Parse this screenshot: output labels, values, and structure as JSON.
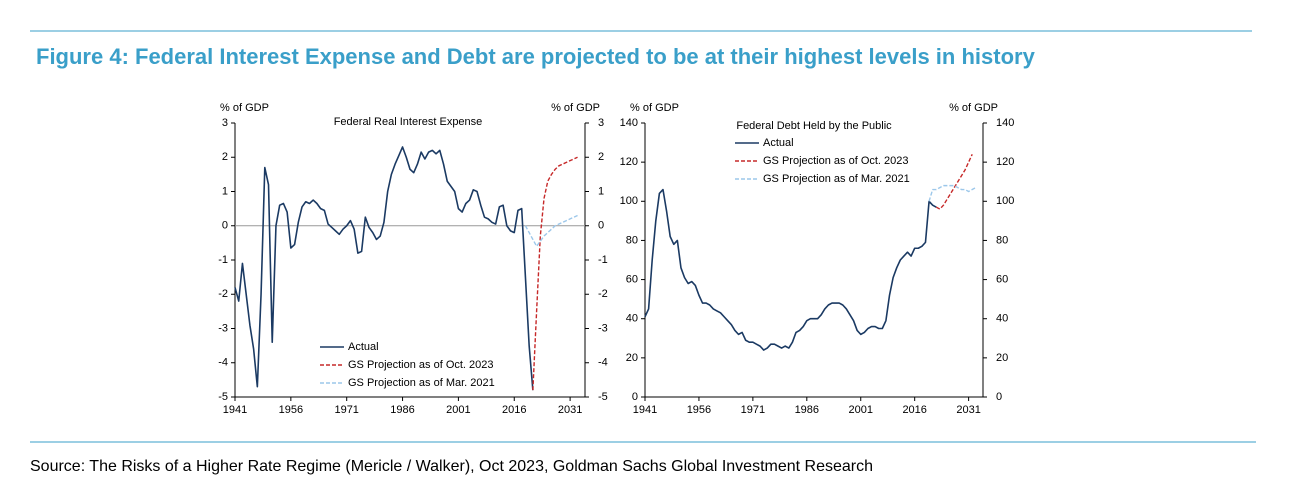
{
  "title": "Figure 4: Federal Interest Expense and Debt are projected to be at their highest levels in history",
  "source": "Source: The Risks of a Higher Rate Regime (Mericle / Walker), Oct 2023, Goldman Sachs Global Investment Research",
  "chart_data": [
    {
      "type": "line",
      "title": "Federal Real Interest Expense",
      "ylabel": "% of GDP",
      "y2label": "% of GDP",
      "xlim": [
        1941,
        2035
      ],
      "xticks": [
        1941,
        1956,
        1971,
        1986,
        2001,
        2016,
        2031
      ],
      "ylim": [
        -5,
        3
      ],
      "yticks": [
        -5,
        -4,
        -3,
        -2,
        -1,
        0,
        1,
        2,
        3
      ],
      "y2lim": [
        -5,
        3
      ],
      "y2ticks": [
        -5,
        -4,
        -3,
        -2,
        -1,
        0,
        1,
        2,
        3
      ],
      "legend": "lower left",
      "series": [
        {
          "name": "Actual",
          "color": "#1b3a63",
          "style": "solid",
          "x": [
            1941,
            1942,
            1943,
            1944,
            1945,
            1946,
            1947,
            1948,
            1949,
            1950,
            1951,
            1952,
            1953,
            1954,
            1955,
            1956,
            1957,
            1958,
            1959,
            1960,
            1961,
            1962,
            1963,
            1964,
            1965,
            1966,
            1967,
            1968,
            1969,
            1970,
            1971,
            1972,
            1973,
            1974,
            1975,
            1976,
            1977,
            1978,
            1979,
            1980,
            1981,
            1982,
            1983,
            1984,
            1985,
            1986,
            1987,
            1988,
            1989,
            1990,
            1991,
            1992,
            1993,
            1994,
            1995,
            1996,
            1997,
            1998,
            1999,
            2000,
            2001,
            2002,
            2003,
            2004,
            2005,
            2006,
            2007,
            2008,
            2009,
            2010,
            2011,
            2012,
            2013,
            2014,
            2015,
            2016,
            2017,
            2018,
            2019,
            2020,
            2021
          ],
          "values": [
            -1.8,
            -2.2,
            -1.1,
            -2.0,
            -2.9,
            -3.6,
            -4.7,
            -2.0,
            1.7,
            1.2,
            -3.4,
            0.0,
            0.6,
            0.65,
            0.4,
            -0.65,
            -0.55,
            0.1,
            0.55,
            0.7,
            0.65,
            0.75,
            0.65,
            0.5,
            0.45,
            0.05,
            -0.05,
            -0.15,
            -0.25,
            -0.1,
            0.0,
            0.15,
            -0.1,
            -0.8,
            -0.75,
            0.25,
            -0.05,
            -0.2,
            -0.4,
            -0.3,
            0.1,
            1.0,
            1.5,
            1.8,
            2.05,
            2.3,
            2.0,
            1.65,
            1.55,
            1.8,
            2.15,
            1.95,
            2.15,
            2.2,
            2.1,
            2.2,
            1.8,
            1.3,
            1.15,
            1.0,
            0.5,
            0.4,
            0.65,
            0.75,
            1.05,
            1.0,
            0.6,
            0.25,
            0.2,
            0.1,
            0.05,
            0.55,
            0.6,
            0.0,
            -0.15,
            -0.2,
            0.45,
            0.5,
            -1.5,
            -3.5,
            -4.8
          ]
        },
        {
          "name": "GS Projection as of Oct. 2023",
          "color": "#c62828",
          "style": "dashed",
          "x": [
            2021,
            2022,
            2023,
            2024,
            2025,
            2026,
            2027,
            2028,
            2029,
            2030,
            2031,
            2032,
            2033
          ],
          "values": [
            -4.8,
            -2.5,
            -0.3,
            0.8,
            1.3,
            1.5,
            1.65,
            1.75,
            1.8,
            1.85,
            1.9,
            1.95,
            2.0
          ]
        },
        {
          "name": "GS Projection as of Mar. 2021",
          "color": "#9cc7ea",
          "style": "dashed",
          "x": [
            2019,
            2020,
            2021,
            2022,
            2023,
            2024,
            2025,
            2026,
            2027,
            2028,
            2029,
            2030,
            2031,
            2032,
            2033
          ],
          "values": [
            0.0,
            -0.2,
            -0.4,
            -0.6,
            -0.45,
            -0.3,
            -0.2,
            -0.1,
            0.0,
            0.05,
            0.1,
            0.15,
            0.2,
            0.25,
            0.3
          ]
        }
      ]
    },
    {
      "type": "line",
      "title": "Federal Debt Held by the Public",
      "ylabel": "% of GDP",
      "y2label": "% of GDP",
      "xlim": [
        1941,
        2035
      ],
      "xticks": [
        1941,
        1956,
        1971,
        1986,
        2001,
        2016,
        2031
      ],
      "ylim": [
        0,
        140
      ],
      "yticks": [
        0,
        20,
        40,
        60,
        80,
        100,
        120,
        140
      ],
      "y2lim": [
        0,
        140
      ],
      "y2ticks": [
        0,
        20,
        40,
        60,
        80,
        100,
        120,
        140
      ],
      "legend": "upper left",
      "series": [
        {
          "name": "Actual",
          "color": "#1b3a63",
          "style": "solid",
          "x": [
            1941,
            1942,
            1943,
            1944,
            1945,
            1946,
            1947,
            1948,
            1949,
            1950,
            1951,
            1952,
            1953,
            1954,
            1955,
            1956,
            1957,
            1958,
            1959,
            1960,
            1961,
            1962,
            1963,
            1964,
            1965,
            1966,
            1967,
            1968,
            1969,
            1970,
            1971,
            1972,
            1973,
            1974,
            1975,
            1976,
            1977,
            1978,
            1979,
            1980,
            1981,
            1982,
            1983,
            1984,
            1985,
            1986,
            1987,
            1988,
            1989,
            1990,
            1991,
            1992,
            1993,
            1994,
            1995,
            1996,
            1997,
            1998,
            1999,
            2000,
            2001,
            2002,
            2003,
            2004,
            2005,
            2006,
            2007,
            2008,
            2009,
            2010,
            2011,
            2012,
            2013,
            2014,
            2015,
            2016,
            2017,
            2018,
            2019,
            2020,
            2021,
            2022
          ],
          "values": [
            41,
            45,
            70,
            90,
            104,
            106,
            95,
            82,
            78,
            80,
            66,
            61,
            58,
            59,
            57,
            52,
            48,
            48,
            47,
            45,
            44,
            43,
            41,
            39,
            37,
            34,
            32,
            33,
            29,
            28,
            28,
            27,
            26,
            24,
            25,
            27,
            27,
            26,
            25,
            26,
            25,
            28,
            33,
            34,
            36,
            39,
            40,
            40,
            40,
            42,
            45,
            47,
            48,
            48,
            48,
            47,
            45,
            42,
            39,
            34,
            32,
            33,
            35,
            36,
            36,
            35,
            35,
            39,
            52,
            61,
            66,
            70,
            72,
            74,
            72,
            76,
            76,
            77,
            79,
            100,
            98,
            97
          ]
        },
        {
          "name": "GS Projection as of Oct. 2023",
          "color": "#c62828",
          "style": "dashed",
          "x": [
            2022,
            2023,
            2024,
            2025,
            2026,
            2027,
            2028,
            2029,
            2030,
            2031,
            2032
          ],
          "values": [
            97,
            96,
            98,
            101,
            104,
            107,
            110,
            113,
            116,
            120,
            124
          ]
        },
        {
          "name": "GS Projection as of Mar. 2021",
          "color": "#9cc7ea",
          "style": "dashed",
          "x": [
            2020,
            2021,
            2022,
            2023,
            2024,
            2025,
            2026,
            2027,
            2028,
            2029,
            2030,
            2031,
            2032,
            2033
          ],
          "values": [
            100,
            106,
            106,
            107,
            108,
            108,
            108,
            108,
            107,
            106,
            106,
            105,
            106,
            107
          ]
        }
      ]
    }
  ]
}
